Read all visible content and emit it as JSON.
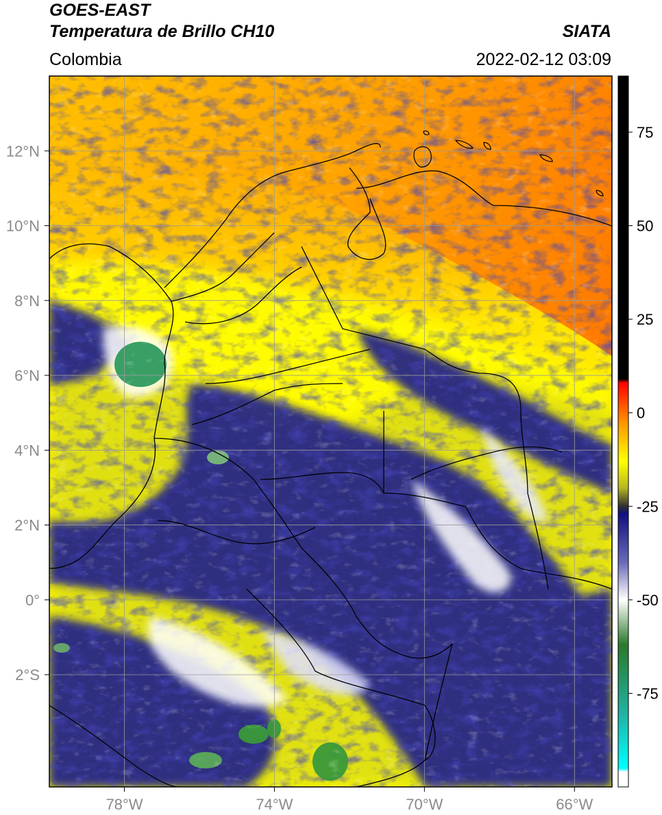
{
  "header": {
    "satellite": "GOES-EAST",
    "product": "Temperatura de Brillo CH10",
    "region": "Colombia",
    "source": "SIATA",
    "timestamp": "2022-02-12 03:09"
  },
  "map": {
    "lon_range": [
      -80,
      -65
    ],
    "lat_range": [
      -5,
      14
    ],
    "lon_ticks": [
      {
        "value": -78,
        "label": "78°W"
      },
      {
        "value": -74,
        "label": "74°W"
      },
      {
        "value": -70,
        "label": "70°W"
      },
      {
        "value": -66,
        "label": "66°W"
      }
    ],
    "lat_ticks": [
      {
        "value": 12,
        "label": "12°N"
      },
      {
        "value": 10,
        "label": "10°N"
      },
      {
        "value": 8,
        "label": "8°N"
      },
      {
        "value": 6,
        "label": "6°N"
      },
      {
        "value": 4,
        "label": "4°N"
      },
      {
        "value": 2,
        "label": "2°N"
      },
      {
        "value": 0,
        "label": "0°"
      },
      {
        "value": -2,
        "label": "2°S"
      }
    ],
    "grid": true
  },
  "colorbar": {
    "range": [
      -100,
      90
    ],
    "ticks": [
      {
        "value": 75,
        "label": "75"
      },
      {
        "value": 50,
        "label": "50"
      },
      {
        "value": 25,
        "label": "25"
      },
      {
        "value": 0,
        "label": "0"
      },
      {
        "value": -25,
        "label": "-25"
      },
      {
        "value": -50,
        "label": "-50"
      },
      {
        "value": -75,
        "label": "-75"
      }
    ],
    "stops": [
      {
        "value": 90,
        "color": "#000000"
      },
      {
        "value": 9,
        "color": "#000000"
      },
      {
        "value": 8,
        "color": "#ff0000"
      },
      {
        "value": -3,
        "color": "#ff9900"
      },
      {
        "value": -13,
        "color": "#ffff00"
      },
      {
        "value": -20,
        "color": "#b8b820"
      },
      {
        "value": -25,
        "color": "#303030"
      },
      {
        "value": -27,
        "color": "#101080"
      },
      {
        "value": -40,
        "color": "#6a6ab8"
      },
      {
        "value": -50,
        "color": "#ffffff"
      },
      {
        "value": -62,
        "color": "#2a7a2a"
      },
      {
        "value": -80,
        "color": "#20b0a0"
      },
      {
        "value": -95,
        "color": "#00ffff"
      },
      {
        "value": -96,
        "color": "#ffffff"
      },
      {
        "value": -100,
        "color": "#ffffff"
      }
    ]
  },
  "colors": {
    "tick_label": "#8a8a8a",
    "grid": "#9a9a9a",
    "border": "#000000"
  }
}
